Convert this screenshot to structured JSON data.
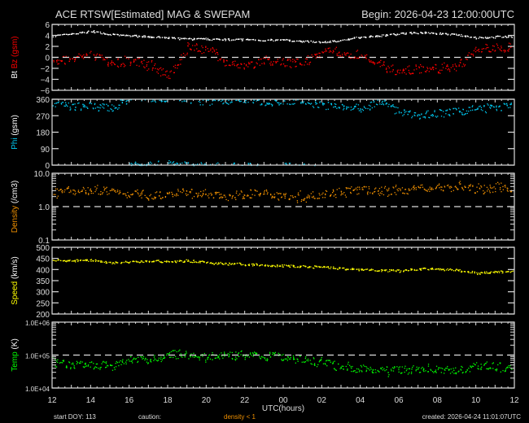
{
  "header": {
    "title": "ACE RTSW[Estimated] MAG & SWEPAM",
    "begin": "Begin: 2026-04-23 12:00:00UTC"
  },
  "footer": {
    "start_doy": "start DOY: 113",
    "caution": "caution:",
    "caution_value": "density < 1",
    "created": "created: 2026-04-24 11:01:07UTC",
    "xlabel": "UTC(hours)"
  },
  "colors": {
    "bt": "#ffffff",
    "bz": "#ff0000",
    "phi": "#00c8f0",
    "density": "#f09000",
    "speed": "#ffff00",
    "temp": "#00ff00",
    "caution": "#f09000"
  },
  "chart_data": [
    {
      "type": "scatter",
      "ylabel_parts": [
        {
          "text": "Bt",
          "color": "#ffffff"
        },
        {
          "text": "Bz",
          "color": "#ff0000"
        },
        {
          "text": "(gsm)",
          "color": "#ff0000"
        }
      ],
      "ylim": [
        -6,
        6
      ],
      "scale": "linear",
      "yticks": [
        "6",
        "4",
        "2",
        "0",
        "−2",
        "−4",
        "−6"
      ],
      "ytick_values": [
        6,
        4,
        2,
        0,
        -2,
        -4,
        -6
      ],
      "dashed_at": 0,
      "series": [
        {
          "key": "bt",
          "color": "#ffffff",
          "values": [
            4.0,
            4.3,
            4.8,
            4.2,
            4.0,
            3.8,
            3.6,
            3.4,
            3.4,
            3.3,
            3.3,
            3.2,
            3.2,
            3.0,
            2.8,
            3.2,
            3.8,
            4.0,
            4.4,
            4.6,
            4.4,
            4.2,
            3.6,
            3.8
          ]
        },
        {
          "key": "bz",
          "color": "#ff0000",
          "values": [
            -0.5,
            -0.5,
            0.5,
            -1,
            -0.5,
            -1.5,
            -3,
            2,
            1.5,
            -1,
            -1.5,
            -0.5,
            -1,
            -1,
            1.5,
            0.5,
            0.5,
            -1.5,
            -2.5,
            -2,
            -2,
            -1.5,
            1.5,
            2
          ]
        }
      ]
    },
    {
      "type": "scatter",
      "ylabel_parts": [
        {
          "text": "Phi",
          "color": "#00c8f0"
        },
        {
          "text": "(gsm)",
          "color": "#ffffff"
        }
      ],
      "ylim": [
        0,
        360
      ],
      "scale": "linear",
      "yticks": [
        "360",
        "270",
        "180",
        "90",
        "0"
      ],
      "ytick_values": [
        360,
        270,
        180,
        90,
        0
      ],
      "series": [
        {
          "key": "phi",
          "color": "#00c8f0",
          "values": [
            335,
            320,
            325,
            310,
            5,
            10,
            8,
            355,
            350,
            355,
            355,
            345,
            355,
            350,
            330,
            320,
            310,
            350,
            290,
            275,
            285,
            295,
            310,
            320
          ]
        }
      ]
    },
    {
      "type": "scatter",
      "ylabel_parts": [
        {
          "text": "Density",
          "color": "#f09000"
        },
        {
          "text": "(/cm3)",
          "color": "#ffffff"
        }
      ],
      "ylim": [
        0.1,
        10
      ],
      "scale": "log",
      "yticks": [
        "10.0",
        "1.0",
        "0.1"
      ],
      "ytick_values": [
        10,
        1,
        0.1
      ],
      "dashed_at": 1,
      "series": [
        {
          "key": "density",
          "color": "#f09000",
          "values": [
            2.8,
            3.0,
            3.2,
            2.8,
            2.6,
            2.2,
            2.5,
            2.8,
            2.3,
            2.1,
            2.5,
            2.4,
            2.2,
            2.0,
            2.6,
            3.0,
            3.2,
            3.0,
            3.2,
            3.6,
            3.8,
            4.2,
            3.3,
            3.8
          ]
        }
      ]
    },
    {
      "type": "scatter",
      "ylabel_parts": [
        {
          "text": "Speed",
          "color": "#ffff00"
        },
        {
          "text": "(km/s)",
          "color": "#ffffff"
        }
      ],
      "ylim": [
        200,
        500
      ],
      "scale": "linear",
      "yticks": [
        "500",
        "450",
        "400",
        "350",
        "300",
        "250",
        "200"
      ],
      "ytick_values": [
        500,
        450,
        400,
        350,
        300,
        250,
        200
      ],
      "series": [
        {
          "key": "speed",
          "color": "#ffff00",
          "values": [
            445,
            440,
            445,
            432,
            435,
            440,
            438,
            440,
            432,
            428,
            425,
            420,
            418,
            415,
            412,
            405,
            400,
            398,
            395,
            405,
            402,
            400,
            385,
            392
          ]
        }
      ]
    },
    {
      "type": "scatter",
      "ylabel_parts": [
        {
          "text": "Temp",
          "color": "#00ff00"
        },
        {
          "text": "(K)",
          "color": "#ffffff"
        }
      ],
      "ylim": [
        10000,
        1000000
      ],
      "scale": "log",
      "yticks": [
        "1.0E+06",
        "1.0E+05",
        "1.0E+04"
      ],
      "ytick_values": [
        1000000,
        100000,
        10000
      ],
      "dashed_at": 100000,
      "series": [
        {
          "key": "temp",
          "color": "#00ff00",
          "values": [
            60000,
            50000,
            50000,
            45000,
            80000,
            70000,
            110000,
            100000,
            90000,
            100000,
            100000,
            100000,
            90000,
            80000,
            60000,
            45000,
            40000,
            35000,
            35000,
            40000,
            40000,
            35000,
            50000,
            45000
          ]
        }
      ]
    }
  ],
  "x_axis": {
    "hours": [
      "12",
      "13",
      "14",
      "15",
      "16",
      "17",
      "18",
      "19",
      "20",
      "21",
      "22",
      "23",
      "00",
      "01",
      "02",
      "03",
      "04",
      "05",
      "06",
      "07",
      "08",
      "09",
      "10",
      "11"
    ],
    "ticks": [
      "12",
      "14",
      "16",
      "18",
      "20",
      "22",
      "00",
      "02",
      "04",
      "06",
      "08",
      "10",
      "12"
    ]
  }
}
